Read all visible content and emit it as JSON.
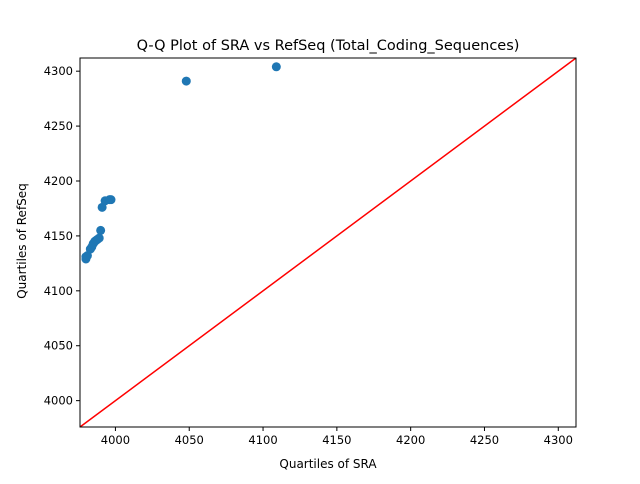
{
  "chart_data": {
    "type": "scatter",
    "title": "Q-Q Plot of SRA vs RefSeq (Total_Coding_Sequences)",
    "xlabel": "Quartiles of SRA",
    "ylabel": "Quartiles of RefSeq",
    "xlim": [
      3976,
      4312
    ],
    "ylim": [
      3976,
      4312
    ],
    "x_ticks": [
      4000,
      4050,
      4100,
      4150,
      4200,
      4250,
      4300
    ],
    "y_ticks": [
      4000,
      4050,
      4100,
      4150,
      4200,
      4250,
      4300
    ],
    "grid": false,
    "legend": "none",
    "points": [
      {
        "x": 3980,
        "y": 4129
      },
      {
        "x": 3980,
        "y": 4131
      },
      {
        "x": 3981,
        "y": 4132
      },
      {
        "x": 3983,
        "y": 4138
      },
      {
        "x": 3984,
        "y": 4140
      },
      {
        "x": 3985,
        "y": 4143
      },
      {
        "x": 3986,
        "y": 4145
      },
      {
        "x": 3987,
        "y": 4146
      },
      {
        "x": 3988,
        "y": 4147
      },
      {
        "x": 3989,
        "y": 4148
      },
      {
        "x": 3990,
        "y": 4155
      },
      {
        "x": 3991,
        "y": 4176
      },
      {
        "x": 3993,
        "y": 4182
      },
      {
        "x": 3996,
        "y": 4183
      },
      {
        "x": 3997,
        "y": 4183
      },
      {
        "x": 4048,
        "y": 4291
      },
      {
        "x": 4109,
        "y": 4304
      }
    ],
    "reference_line": {
      "from": [
        3976,
        3976
      ],
      "to": [
        4312,
        4312
      ],
      "color": "#ff0000"
    },
    "marker_color": "#1f77b4"
  }
}
